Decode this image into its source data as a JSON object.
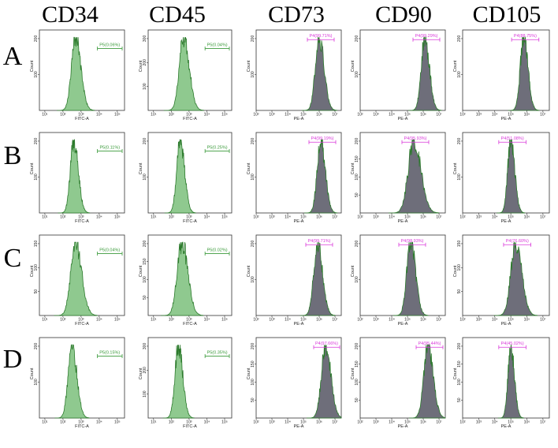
{
  "figure": {
    "column_headers": [
      "CD34",
      "CD45",
      "CD73",
      "CD90",
      "CD105"
    ],
    "row_labels": [
      "A",
      "B",
      "C",
      "D"
    ]
  },
  "colors": {
    "fitc_fill": "#8fc98f",
    "fitc_stroke": "#2c7a2c",
    "pe_fill": "#6e6e7a",
    "pe_stroke": "#2c7a2c",
    "gate_green": "#3a9a3a",
    "gate_magenta": "#d936d9"
  },
  "chart_data": [
    {
      "type": "histogram",
      "row": "A",
      "marker": "CD34",
      "xlabel": "FITC-A",
      "ylabel": "Count",
      "gate": "P5(0.06%)",
      "ymax_tick": 200,
      "yticks": [
        100,
        200
      ],
      "xticks": [
        "10¹",
        "10²",
        "10³",
        "10⁴",
        "10⁵"
      ],
      "peak_log": 2.7,
      "width": 0.26,
      "channel": "FITC"
    },
    {
      "type": "histogram",
      "row": "A",
      "marker": "CD45",
      "xlabel": "FITC-A",
      "ylabel": "Count",
      "gate": "P5(0.04%)",
      "ymax_tick": 300,
      "yticks": [
        100,
        200,
        300
      ],
      "xticks": [
        "10¹",
        "10²",
        "10³",
        "10⁴",
        "10⁵"
      ],
      "peak_log": 2.7,
      "width": 0.28,
      "channel": "FITC"
    },
    {
      "type": "histogram",
      "row": "A",
      "marker": "CD73",
      "xlabel": "PE-A",
      "ylabel": "Count",
      "gate": "P4(99.71%)",
      "ymax_tick": 200,
      "yticks": [
        100,
        200
      ],
      "xticks": [
        "10²",
        "10³",
        "10⁴",
        "10⁵",
        "10⁶",
        "10⁷"
      ],
      "peak_log": 6.0,
      "width": 0.28,
      "channel": "PE"
    },
    {
      "type": "histogram",
      "row": "A",
      "marker": "CD90",
      "xlabel": "PE-A",
      "ylabel": "Count",
      "gate": "P4(99.29%)",
      "ymax_tick": 200,
      "yticks": [
        100,
        200
      ],
      "xticks": [
        "10²",
        "10³",
        "10⁴",
        "10⁵",
        "10⁶",
        "10⁷"
      ],
      "peak_log": 6.1,
      "width": 0.26,
      "channel": "PE"
    },
    {
      "type": "histogram",
      "row": "A",
      "marker": "CD105",
      "xlabel": "PE-A",
      "ylabel": "Count",
      "gate": "P4(88.75%)",
      "ymax_tick": 200,
      "yticks": [
        100,
        200
      ],
      "xticks": [
        "10²",
        "10³",
        "10⁴",
        "10⁵",
        "10⁶",
        "10⁷"
      ],
      "peak_log": 5.8,
      "width": 0.24,
      "channel": "PE"
    },
    {
      "type": "histogram",
      "row": "B",
      "marker": "CD34",
      "xlabel": "FITC-A",
      "ylabel": "Count",
      "gate": "P5(0.11%)",
      "ymax_tick": 200,
      "yticks": [
        100,
        200
      ],
      "xticks": [
        "10¹",
        "10²",
        "10³",
        "10⁴",
        "10⁵"
      ],
      "peak_log": 2.6,
      "width": 0.22,
      "channel": "FITC"
    },
    {
      "type": "histogram",
      "row": "B",
      "marker": "CD45",
      "xlabel": "FITC-A",
      "ylabel": "Count",
      "gate": "P5(0.25%)",
      "ymax_tick": 200,
      "yticks": [
        100,
        200
      ],
      "xticks": [
        "10¹",
        "10²",
        "10³",
        "10⁴",
        "10⁵"
      ],
      "peak_log": 2.5,
      "width": 0.22,
      "channel": "FITC"
    },
    {
      "type": "histogram",
      "row": "B",
      "marker": "CD73",
      "xlabel": "PE-A",
      "ylabel": "Count",
      "gate": "P4(99.19%)",
      "ymax_tick": 200,
      "yticks": [
        100,
        200
      ],
      "xticks": [
        "10²",
        "10³",
        "10⁴",
        "10⁵",
        "10⁶",
        "10⁷"
      ],
      "peak_log": 6.1,
      "width": 0.26,
      "channel": "PE"
    },
    {
      "type": "histogram",
      "row": "B",
      "marker": "CD90",
      "xlabel": "PE-A",
      "ylabel": "Count",
      "gate": "P4(95.93%)",
      "ymax_tick": 200,
      "yticks": [
        50,
        100,
        150,
        200
      ],
      "xticks": [
        "10²",
        "10³",
        "10⁴",
        "10⁵",
        "10⁶",
        "10⁷"
      ],
      "peak_log": 5.4,
      "width": 0.4,
      "channel": "PE"
    },
    {
      "type": "histogram",
      "row": "B",
      "marker": "CD105",
      "xlabel": "PE-A",
      "ylabel": "Count",
      "gate": "P4(51.08%)",
      "ymax_tick": 200,
      "yticks": [
        100,
        200
      ],
      "xticks": [
        "10²",
        "10³",
        "10⁴",
        "10⁵",
        "10⁶",
        "10⁷"
      ],
      "peak_log": 5.0,
      "width": 0.22,
      "channel": "PE"
    },
    {
      "type": "histogram",
      "row": "C",
      "marker": "CD34",
      "xlabel": "FITC-A",
      "ylabel": "Count",
      "gate": "P5(0.04%)",
      "ymax_tick": 150,
      "yticks": [
        50,
        100,
        150
      ],
      "xticks": [
        "10¹",
        "10²",
        "10³",
        "10⁴",
        "10⁵"
      ],
      "peak_log": 2.7,
      "width": 0.3,
      "channel": "FITC"
    },
    {
      "type": "histogram",
      "row": "C",
      "marker": "CD45",
      "xlabel": "FITC-A",
      "ylabel": "Count",
      "gate": "P5(0.02%)",
      "ymax_tick": 200,
      "yticks": [
        50,
        100,
        150,
        200
      ],
      "xticks": [
        "10¹",
        "10²",
        "10³",
        "10⁴",
        "10⁵"
      ],
      "peak_log": 2.6,
      "width": 0.3,
      "channel": "FITC"
    },
    {
      "type": "histogram",
      "row": "C",
      "marker": "CD73",
      "xlabel": "PE-A",
      "ylabel": "Count",
      "gate": "P4(99.71%)",
      "ymax_tick": 200,
      "yticks": [
        100,
        200
      ],
      "xticks": [
        "10²",
        "10³",
        "10⁴",
        "10⁵",
        "10⁶",
        "10⁷"
      ],
      "peak_log": 5.9,
      "width": 0.28,
      "channel": "PE"
    },
    {
      "type": "histogram",
      "row": "C",
      "marker": "CD90",
      "xlabel": "PE-A",
      "ylabel": "Count",
      "gate": "P4(98.93%)",
      "ymax_tick": 200,
      "yticks": [
        100,
        200
      ],
      "xticks": [
        "10²",
        "10³",
        "10⁴",
        "10⁵",
        "10⁶",
        "10⁷"
      ],
      "peak_log": 5.2,
      "width": 0.28,
      "channel": "PE"
    },
    {
      "type": "histogram",
      "row": "C",
      "marker": "CD105",
      "xlabel": "PE-A",
      "ylabel": "Count",
      "gate": "P4(76.60%)",
      "ymax_tick": 150,
      "yticks": [
        50,
        100,
        150
      ],
      "xticks": [
        "10²",
        "10³",
        "10⁴",
        "10⁵",
        "10⁶",
        "10⁷"
      ],
      "peak_log": 5.3,
      "width": 0.34,
      "channel": "PE"
    },
    {
      "type": "histogram",
      "row": "D",
      "marker": "CD34",
      "xlabel": "FITC-A",
      "ylabel": "Count",
      "gate": "P5(0.15%)",
      "ymax_tick": 200,
      "yticks": [
        100,
        200
      ],
      "xticks": [
        "10¹",
        "10²",
        "10³",
        "10⁴",
        "10⁵"
      ],
      "peak_log": 2.5,
      "width": 0.24,
      "channel": "FITC"
    },
    {
      "type": "histogram",
      "row": "D",
      "marker": "CD45",
      "xlabel": "FITC-A",
      "ylabel": "Count",
      "gate": "P5(0.35%)",
      "ymax_tick": 300,
      "yticks": [
        100,
        200,
        300
      ],
      "xticks": [
        "10¹",
        "10²",
        "10³",
        "10⁴",
        "10⁵"
      ],
      "peak_log": 2.4,
      "width": 0.22,
      "channel": "FITC"
    },
    {
      "type": "histogram",
      "row": "D",
      "marker": "CD73",
      "xlabel": "PE-A",
      "ylabel": "Count",
      "gate": "P4(97.66%)",
      "ymax_tick": 200,
      "yticks": [
        50,
        100,
        150,
        200
      ],
      "xticks": [
        "10²",
        "10³",
        "10⁴",
        "10⁵",
        "10⁶",
        "10⁷"
      ],
      "peak_log": 6.4,
      "width": 0.3,
      "channel": "PE"
    },
    {
      "type": "histogram",
      "row": "D",
      "marker": "CD90",
      "xlabel": "PE-A",
      "ylabel": "Count",
      "gate": "P4(95.44%)",
      "ymax_tick": 200,
      "yticks": [
        50,
        100,
        150,
        200
      ],
      "xticks": [
        "10²",
        "10³",
        "10⁴",
        "10⁵",
        "10⁶",
        "10⁷"
      ],
      "peak_log": 6.3,
      "width": 0.3,
      "channel": "PE"
    },
    {
      "type": "histogram",
      "row": "D",
      "marker": "CD105",
      "xlabel": "PE-A",
      "ylabel": "Count",
      "gate": "P4(45.02%)",
      "ymax_tick": 200,
      "yticks": [
        50,
        100,
        150,
        200
      ],
      "xticks": [
        "10²",
        "10³",
        "10⁴",
        "10⁵",
        "10⁶",
        "10⁷"
      ],
      "peak_log": 5.0,
      "width": 0.2,
      "channel": "PE"
    }
  ]
}
